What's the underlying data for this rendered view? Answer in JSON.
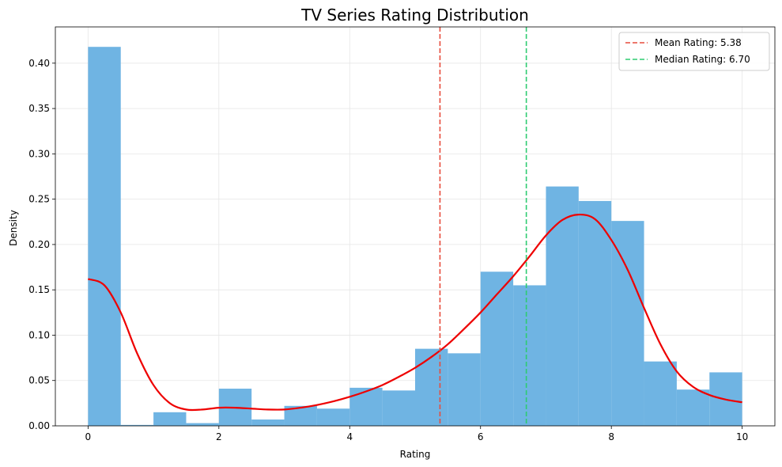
{
  "chart_data": {
    "type": "histogram",
    "title": "TV Series Rating Distribution",
    "xlabel": "Rating",
    "ylabel": "Density",
    "xlim": [
      -0.5,
      10.5
    ],
    "ylim": [
      0,
      0.44
    ],
    "xticks": [
      0,
      2,
      4,
      6,
      8,
      10
    ],
    "yticks": [
      0.0,
      0.05,
      0.1,
      0.15,
      0.2,
      0.25,
      0.3,
      0.35,
      0.4
    ],
    "ytick_labels": [
      "0.00",
      "0.05",
      "0.10",
      "0.15",
      "0.20",
      "0.25",
      "0.30",
      "0.35",
      "0.40"
    ],
    "grid": true,
    "bin_edges": [
      0,
      0.5,
      1,
      1.5,
      2,
      2.5,
      3,
      3.5,
      4,
      4.5,
      5,
      5.5,
      6,
      6.5,
      7,
      7.5,
      8,
      8.5,
      9,
      9.5,
      10
    ],
    "densities": [
      0.418,
      0.001,
      0.015,
      0.003,
      0.041,
      0.007,
      0.022,
      0.019,
      0.042,
      0.039,
      0.085,
      0.08,
      0.17,
      0.155,
      0.264,
      0.248,
      0.226,
      0.071,
      0.04,
      0.059
    ],
    "bar_color": "#6fb4e3",
    "kde": {
      "color": "#ee0000",
      "x": [
        0,
        0.25,
        0.5,
        0.75,
        1.0,
        1.25,
        1.5,
        1.75,
        2.0,
        2.25,
        2.5,
        2.75,
        3.0,
        3.25,
        3.5,
        3.75,
        4.0,
        4.25,
        4.5,
        4.75,
        5.0,
        5.25,
        5.5,
        5.75,
        6.0,
        6.25,
        6.5,
        6.75,
        7.0,
        7.25,
        7.5,
        7.75,
        8.0,
        8.25,
        8.5,
        8.75,
        9.0,
        9.25,
        9.5,
        9.75,
        10.0
      ],
      "y": [
        0.162,
        0.155,
        0.125,
        0.08,
        0.045,
        0.025,
        0.018,
        0.018,
        0.02,
        0.02,
        0.019,
        0.018,
        0.018,
        0.02,
        0.023,
        0.027,
        0.032,
        0.038,
        0.045,
        0.054,
        0.064,
        0.076,
        0.09,
        0.107,
        0.125,
        0.145,
        0.165,
        0.187,
        0.21,
        0.227,
        0.233,
        0.228,
        0.205,
        0.172,
        0.13,
        0.09,
        0.06,
        0.043,
        0.034,
        0.029,
        0.026
      ]
    },
    "lines": [
      {
        "name": "Mean Rating: 5.38",
        "x": 5.38,
        "color": "#e74c3c"
      },
      {
        "name": "Median Rating: 6.70",
        "x": 6.7,
        "color": "#2ecc71"
      }
    ],
    "legend_position": "top-right"
  }
}
